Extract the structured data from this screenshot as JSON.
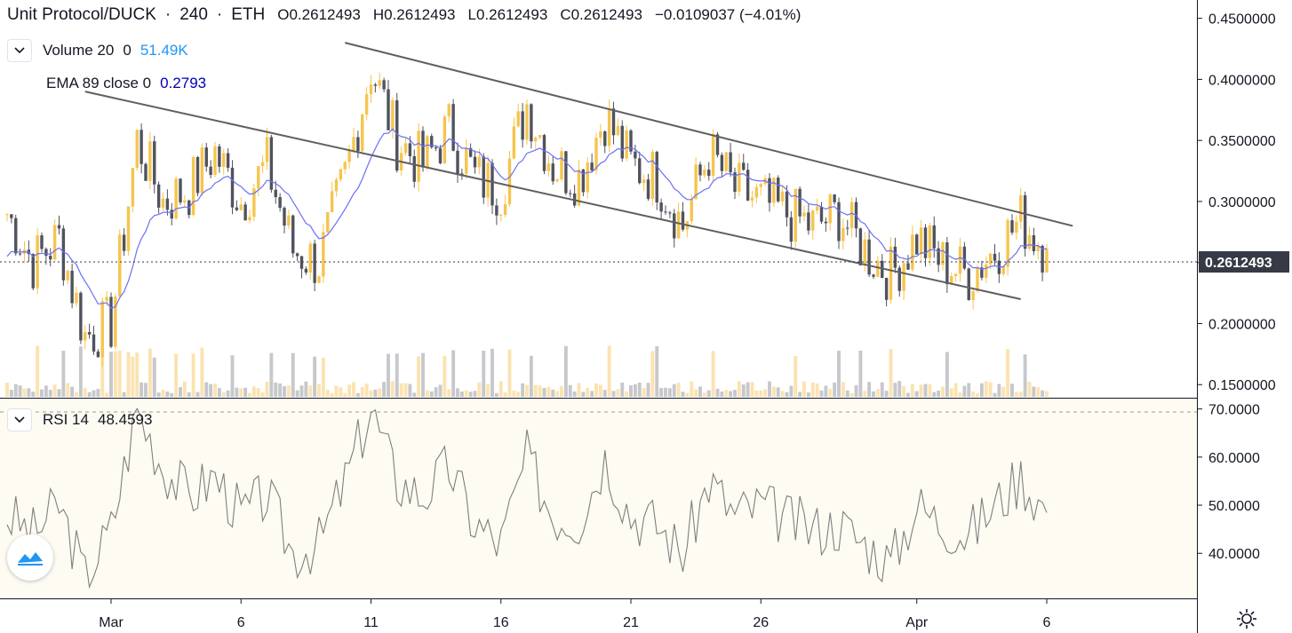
{
  "header": {
    "symbol": "Unit Protocol/DUCK",
    "sep1": "·",
    "interval": "240",
    "sep2": "·",
    "exchange": "ETH",
    "open": "O0.2612493",
    "high": "H0.2612493",
    "low": "L0.2612493",
    "close": "C0.2612493",
    "change": "−0.0109037 (−4.01%)"
  },
  "indicators": {
    "volume_label": "Volume 20",
    "volume_zero": "0",
    "volume_value": "51.49K",
    "ema_label": "EMA 89 close 0",
    "ema_value": "0.2793",
    "rsi_label": "RSI 14",
    "rsi_value": "48.4593"
  },
  "price_axis": [
    "0.4500000",
    "0.4000000",
    "0.3500000",
    "0.3000000",
    "0.2500000",
    "0.2000000",
    "0.1500000"
  ],
  "rsi_axis": [
    "70.0000",
    "60.0000",
    "50.0000",
    "40.0000"
  ],
  "last_price_label": "0.2612493",
  "time_axis": [
    "Mar",
    "6",
    "11",
    "16",
    "21",
    "26",
    "Apr",
    "6"
  ],
  "colors": {
    "up": "#f5c54e",
    "down": "#50535e",
    "ema": "#6b70f5",
    "rsi": "#7f7f7f",
    "trendline": "#606060",
    "volume_up": "#fbe3b0",
    "volume_down": "#c7c8cc",
    "price_label_bg": "#363a45",
    "rsi_bg": "#fdfbf2"
  },
  "icons": {
    "collapse": "chevron-down-icon",
    "logo": "tradingview-logo-icon",
    "settings": "gear-icon"
  },
  "chart_data": [
    {
      "type": "candlestick",
      "title": "Unit Protocol/DUCK · 240 · ETH",
      "x_ticks": [
        "Mar",
        "6",
        "11",
        "16",
        "21",
        "26",
        "Apr",
        "6"
      ],
      "ylim": [
        0.15,
        0.46
      ],
      "last": 0.2612493,
      "ema_89_last": 0.2793,
      "series": [
        {
          "name": "Price (approx. closes)",
          "x_dates": [
            "Feb 25",
            "Feb 26",
            "Feb 27",
            "Feb 28",
            "Mar 1",
            "Mar 2",
            "Mar 3",
            "Mar 4",
            "Mar 5",
            "Mar 6",
            "Mar 7",
            "Mar 8",
            "Mar 9",
            "Mar 10",
            "Mar 11",
            "Mar 12",
            "Mar 13",
            "Mar 14",
            "Mar 15",
            "Mar 16",
            "Mar 17",
            "Mar 18",
            "Mar 19",
            "Mar 20",
            "Mar 21",
            "Mar 22",
            "Mar 23",
            "Mar 24",
            "Mar 25",
            "Mar 26",
            "Mar 27",
            "Mar 28",
            "Mar 29",
            "Mar 30",
            "Mar 31",
            "Apr 1",
            "Apr 2",
            "Apr 3",
            "Apr 4",
            "Apr 5",
            "Apr 6"
          ],
          "values": [
            0.29,
            0.25,
            0.27,
            0.19,
            0.2,
            0.35,
            0.3,
            0.31,
            0.34,
            0.3,
            0.33,
            0.26,
            0.25,
            0.32,
            0.41,
            0.35,
            0.33,
            0.36,
            0.32,
            0.31,
            0.38,
            0.33,
            0.32,
            0.37,
            0.33,
            0.32,
            0.28,
            0.34,
            0.31,
            0.3,
            0.29,
            0.28,
            0.29,
            0.26,
            0.24,
            0.27,
            0.25,
            0.24,
            0.26,
            0.285,
            0.2612493
          ]
        }
      ],
      "trendlines": [
        {
          "name": "upper",
          "from": [
            "Mar 10",
            0.43
          ],
          "to": [
            "Apr 7",
            0.28
          ]
        },
        {
          "name": "lower",
          "from": [
            "Feb 28",
            0.39
          ],
          "to": [
            "Apr 5",
            0.22
          ]
        }
      ]
    },
    {
      "type": "line",
      "title": "RSI 14",
      "ylim": [
        31,
        71
      ],
      "x_dates": [
        "Feb 25",
        "Feb 26",
        "Feb 27",
        "Feb 28",
        "Mar 1",
        "Mar 2",
        "Mar 3",
        "Mar 4",
        "Mar 5",
        "Mar 6",
        "Mar 7",
        "Mar 8",
        "Mar 9",
        "Mar 10",
        "Mar 11",
        "Mar 12",
        "Mar 13",
        "Mar 14",
        "Mar 15",
        "Mar 16",
        "Mar 17",
        "Mar 18",
        "Mar 19",
        "Mar 20",
        "Mar 21",
        "Mar 22",
        "Mar 23",
        "Mar 24",
        "Mar 25",
        "Mar 26",
        "Mar 27",
        "Mar 28",
        "Mar 29",
        "Mar 30",
        "Mar 31",
        "Apr 1",
        "Apr 2",
        "Apr 3",
        "Apr 4",
        "Apr 5",
        "Apr 6"
      ],
      "values": [
        48,
        44,
        50,
        35,
        45,
        70,
        58,
        52,
        56,
        48,
        52,
        40,
        42,
        55,
        70,
        55,
        52,
        58,
        46,
        42,
        60,
        48,
        47,
        60,
        48,
        46,
        40,
        55,
        48,
        50,
        47,
        45,
        46,
        42,
        38,
        50,
        46,
        44,
        50,
        56,
        48.4593
      ],
      "reference_line": 70
    }
  ]
}
